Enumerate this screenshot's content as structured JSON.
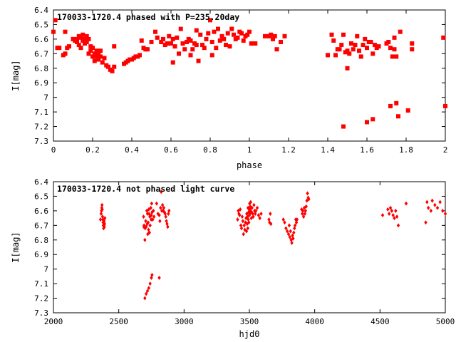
{
  "chart_data": [
    {
      "type": "scatter",
      "title": "170033-1720.4 phased with P=235.20day",
      "xlabel": "phase",
      "ylabel": "I[mag]",
      "xlim": [
        0,
        2
      ],
      "ylim": [
        7.3,
        6.4
      ],
      "y_inverted": true,
      "grid": false,
      "color": "#ff0000",
      "marker": "filled-square",
      "xticks": [
        0,
        0.2,
        0.4,
        0.6,
        0.8,
        1,
        1.2,
        1.4,
        1.6,
        1.8,
        2
      ],
      "xticklabels": [
        "0",
        "0.2",
        "0.4",
        "0.6",
        "0.8",
        "1",
        "1.2",
        "1.4",
        "1.6",
        "1.8",
        "2"
      ],
      "yticks": [
        6.4,
        6.5,
        6.6,
        6.7,
        6.8,
        6.9,
        7.0,
        7.1,
        7.2,
        7.3
      ],
      "yticklabels": [
        "6.4",
        "6.5",
        "6.6",
        "6.7",
        "6.8",
        "6.9",
        "7",
        "7.1",
        "7.2",
        "7.3"
      ],
      "points": [
        [
          0.0,
          6.55
        ],
        [
          0.01,
          6.47
        ],
        [
          0.02,
          6.66
        ],
        [
          0.03,
          6.66
        ],
        [
          0.05,
          6.71
        ],
        [
          0.06,
          6.7
        ],
        [
          0.06,
          6.55
        ],
        [
          0.07,
          6.66
        ],
        [
          0.08,
          6.65
        ],
        [
          0.1,
          6.6
        ],
        [
          0.11,
          6.61
        ],
        [
          0.12,
          6.6
        ],
        [
          0.12,
          6.62
        ],
        [
          0.13,
          6.58
        ],
        [
          0.13,
          6.64
        ],
        [
          0.14,
          6.59
        ],
        [
          0.14,
          6.66
        ],
        [
          0.15,
          6.61
        ],
        [
          0.15,
          6.57
        ],
        [
          0.16,
          6.6
        ],
        [
          0.16,
          6.63
        ],
        [
          0.17,
          6.62
        ],
        [
          0.17,
          6.58
        ],
        [
          0.18,
          6.6
        ],
        [
          0.18,
          6.7
        ],
        [
          0.19,
          6.65
        ],
        [
          0.19,
          6.68
        ],
        [
          0.2,
          6.66
        ],
        [
          0.2,
          6.72
        ],
        [
          0.21,
          6.7
        ],
        [
          0.21,
          6.75
        ],
        [
          0.22,
          6.68
        ],
        [
          0.22,
          6.72
        ],
        [
          0.23,
          6.7
        ],
        [
          0.23,
          6.74
        ],
        [
          0.24,
          6.68
        ],
        [
          0.24,
          6.72
        ],
        [
          0.25,
          6.76
        ],
        [
          0.26,
          6.73
        ],
        [
          0.27,
          6.78
        ],
        [
          0.28,
          6.79
        ],
        [
          0.29,
          6.81
        ],
        [
          0.3,
          6.82
        ],
        [
          0.31,
          6.79
        ],
        [
          0.31,
          6.65
        ],
        [
          0.36,
          6.77
        ],
        [
          0.37,
          6.76
        ],
        [
          0.38,
          6.75
        ],
        [
          0.39,
          6.74
        ],
        [
          0.4,
          6.74
        ],
        [
          0.41,
          6.73
        ],
        [
          0.42,
          6.72
        ],
        [
          0.43,
          6.72
        ],
        [
          0.44,
          6.71
        ],
        [
          0.45,
          6.61
        ],
        [
          0.46,
          6.66
        ],
        [
          0.47,
          6.67
        ],
        [
          0.48,
          6.67
        ],
        [
          0.5,
          6.62
        ],
        [
          0.52,
          6.55
        ],
        [
          0.53,
          6.59
        ],
        [
          0.55,
          6.62
        ],
        [
          0.56,
          6.6
        ],
        [
          0.57,
          6.64
        ],
        [
          0.58,
          6.63
        ],
        [
          0.59,
          6.58
        ],
        [
          0.6,
          6.63
        ],
        [
          0.61,
          6.6
        ],
        [
          0.61,
          6.76
        ],
        [
          0.62,
          6.65
        ],
        [
          0.63,
          6.59
        ],
        [
          0.64,
          6.7
        ],
        [
          0.65,
          6.53
        ],
        [
          0.66,
          6.63
        ],
        [
          0.67,
          6.67
        ],
        [
          0.68,
          6.62
        ],
        [
          0.69,
          6.6
        ],
        [
          0.7,
          6.61
        ],
        [
          0.7,
          6.71
        ],
        [
          0.71,
          6.67
        ],
        [
          0.72,
          6.63
        ],
        [
          0.73,
          6.64
        ],
        [
          0.73,
          6.54
        ],
        [
          0.74,
          6.75
        ],
        [
          0.75,
          6.57
        ],
        [
          0.76,
          6.64
        ],
        [
          0.77,
          6.66
        ],
        [
          0.78,
          6.6
        ],
        [
          0.79,
          6.56
        ],
        [
          0.8,
          6.47
        ],
        [
          0.81,
          6.62
        ],
        [
          0.81,
          6.71
        ],
        [
          0.82,
          6.55
        ],
        [
          0.83,
          6.66
        ],
        [
          0.84,
          6.53
        ],
        [
          0.85,
          6.61
        ],
        [
          0.86,
          6.58
        ],
        [
          0.87,
          6.6
        ],
        [
          0.88,
          6.64
        ],
        [
          0.89,
          6.56
        ],
        [
          0.9,
          6.65
        ],
        [
          0.91,
          6.53
        ],
        [
          0.92,
          6.57
        ],
        [
          0.93,
          6.6
        ],
        [
          0.94,
          6.59
        ],
        [
          0.95,
          6.55
        ],
        [
          0.96,
          6.56
        ],
        [
          0.97,
          6.61
        ],
        [
          0.98,
          6.58
        ],
        [
          0.99,
          6.57
        ],
        [
          1.0,
          6.55
        ],
        [
          1.01,
          6.63
        ],
        [
          1.02,
          6.63
        ],
        [
          1.03,
          6.63
        ],
        [
          1.08,
          6.58
        ],
        [
          1.1,
          6.58
        ],
        [
          1.11,
          6.57
        ],
        [
          1.12,
          6.6
        ],
        [
          1.13,
          6.58
        ],
        [
          1.14,
          6.67
        ],
        [
          1.16,
          6.62
        ],
        [
          1.18,
          6.58
        ],
        [
          1.4,
          6.71
        ],
        [
          1.42,
          6.57
        ],
        [
          1.43,
          6.61
        ],
        [
          1.44,
          6.71
        ],
        [
          1.45,
          6.67
        ],
        [
          1.46,
          6.67
        ],
        [
          1.47,
          6.64
        ],
        [
          1.48,
          6.57
        ],
        [
          1.48,
          7.2
        ],
        [
          1.49,
          6.69
        ],
        [
          1.5,
          6.68
        ],
        [
          1.5,
          6.8
        ],
        [
          1.51,
          6.7
        ],
        [
          1.52,
          6.63
        ],
        [
          1.53,
          6.67
        ],
        [
          1.54,
          6.64
        ],
        [
          1.55,
          6.58
        ],
        [
          1.56,
          6.68
        ],
        [
          1.57,
          6.72
        ],
        [
          1.58,
          6.64
        ],
        [
          1.59,
          6.6
        ],
        [
          1.6,
          6.66
        ],
        [
          1.6,
          7.17
        ],
        [
          1.61,
          6.62
        ],
        [
          1.62,
          6.62
        ],
        [
          1.63,
          6.7
        ],
        [
          1.63,
          7.15
        ],
        [
          1.64,
          6.64
        ],
        [
          1.65,
          6.66
        ],
        [
          1.66,
          6.65
        ],
        [
          1.7,
          6.63
        ],
        [
          1.71,
          6.62
        ],
        [
          1.72,
          6.66
        ],
        [
          1.72,
          7.06
        ],
        [
          1.73,
          6.72
        ],
        [
          1.74,
          6.67
        ],
        [
          1.74,
          6.59
        ],
        [
          1.75,
          6.72
        ],
        [
          1.75,
          7.04
        ],
        [
          1.76,
          7.13
        ],
        [
          1.77,
          6.55
        ],
        [
          1.81,
          7.09
        ],
        [
          1.83,
          6.63
        ],
        [
          1.83,
          6.67
        ],
        [
          1.99,
          6.59
        ],
        [
          2.0,
          7.06
        ]
      ]
    },
    {
      "type": "scatter",
      "title": "170033-1720.4 not phased light curve",
      "xlabel": "hjd0",
      "ylabel": "I[mag]",
      "xlim": [
        2000,
        5000
      ],
      "ylim": [
        7.3,
        6.4
      ],
      "y_inverted": true,
      "grid": false,
      "color": "#ff0000",
      "marker": "filled-diamond",
      "xticks": [
        2000,
        2500,
        3000,
        3500,
        4000,
        4500,
        5000
      ],
      "xticklabels": [
        "2000",
        "2500",
        "3000",
        "3500",
        "4000",
        "4500",
        "5000"
      ],
      "yticks": [
        6.4,
        6.5,
        6.6,
        6.7,
        6.8,
        6.9,
        7.0,
        7.1,
        7.2,
        7.3
      ],
      "yticklabels": [
        "6.4",
        "6.5",
        "6.6",
        "6.7",
        "6.8",
        "6.9",
        "7",
        "7.1",
        "7.2",
        "7.3"
      ],
      "points": [
        [
          2360,
          6.66
        ],
        [
          2365,
          6.62
        ],
        [
          2368,
          6.6
        ],
        [
          2370,
          6.58
        ],
        [
          2372,
          6.56
        ],
        [
          2374,
          6.59
        ],
        [
          2376,
          6.64
        ],
        [
          2378,
          6.66
        ],
        [
          2380,
          6.68
        ],
        [
          2382,
          6.7
        ],
        [
          2384,
          6.72
        ],
        [
          2386,
          6.7
        ],
        [
          2388,
          6.67
        ],
        [
          2390,
          6.71
        ],
        [
          2392,
          6.69
        ],
        [
          2394,
          6.65
        ],
        [
          2690,
          6.64
        ],
        [
          2692,
          6.71
        ],
        [
          2694,
          6.7
        ],
        [
          2700,
          6.8
        ],
        [
          2702,
          6.72
        ],
        [
          2706,
          6.67
        ],
        [
          2710,
          6.71
        ],
        [
          2715,
          6.6
        ],
        [
          2718,
          6.69
        ],
        [
          2720,
          6.62
        ],
        [
          2722,
          6.76
        ],
        [
          2725,
          6.68
        ],
        [
          2728,
          6.73
        ],
        [
          2730,
          6.59
        ],
        [
          2732,
          6.62
        ],
        [
          2735,
          6.75
        ],
        [
          2738,
          6.64
        ],
        [
          2740,
          6.7
        ],
        [
          2745,
          6.58
        ],
        [
          2748,
          6.66
        ],
        [
          2750,
          6.63
        ],
        [
          2752,
          6.55
        ],
        [
          2755,
          6.61
        ],
        [
          2760,
          6.66
        ],
        [
          2765,
          6.6
        ],
        [
          2770,
          6.64
        ],
        [
          2790,
          6.55
        ],
        [
          2800,
          6.62
        ],
        [
          2810,
          6.63
        ],
        [
          2815,
          6.67
        ],
        [
          2820,
          6.58
        ],
        [
          2825,
          6.47
        ],
        [
          2830,
          6.6
        ],
        [
          2835,
          6.56
        ],
        [
          2840,
          6.6
        ],
        [
          2845,
          6.58
        ],
        [
          2850,
          6.61
        ],
        [
          2855,
          6.62
        ],
        [
          2860,
          6.64
        ],
        [
          2865,
          6.67
        ],
        [
          2870,
          6.69
        ],
        [
          2875,
          6.71
        ],
        [
          2880,
          6.62
        ],
        [
          2885,
          6.6
        ],
        [
          2700,
          7.2
        ],
        [
          2710,
          7.17
        ],
        [
          2720,
          7.15
        ],
        [
          2730,
          7.13
        ],
        [
          2740,
          7.1
        ],
        [
          2750,
          7.06
        ],
        [
          2755,
          7.04
        ],
        [
          2810,
          7.06
        ],
        [
          3410,
          6.66
        ],
        [
          3415,
          6.6
        ],
        [
          3420,
          6.62
        ],
        [
          3425,
          6.63
        ],
        [
          3430,
          6.59
        ],
        [
          3435,
          6.7
        ],
        [
          3440,
          6.72
        ],
        [
          3445,
          6.64
        ],
        [
          3450,
          6.67
        ],
        [
          3455,
          6.76
        ],
        [
          3460,
          6.7
        ],
        [
          3465,
          6.73
        ],
        [
          3470,
          6.68
        ],
        [
          3475,
          6.65
        ],
        [
          3478,
          6.74
        ],
        [
          3480,
          6.62
        ],
        [
          3483,
          6.69
        ],
        [
          3486,
          6.64
        ],
        [
          3488,
          6.72
        ],
        [
          3490,
          6.58
        ],
        [
          3492,
          6.66
        ],
        [
          3494,
          6.61
        ],
        [
          3496,
          6.68
        ],
        [
          3498,
          6.59
        ],
        [
          3500,
          6.63
        ],
        [
          3502,
          6.55
        ],
        [
          3504,
          6.62
        ],
        [
          3506,
          6.57
        ],
        [
          3508,
          6.6
        ],
        [
          3510,
          6.54
        ],
        [
          3512,
          6.58
        ],
        [
          3515,
          6.65
        ],
        [
          3518,
          6.61
        ],
        [
          3520,
          6.58
        ],
        [
          3525,
          6.62
        ],
        [
          3530,
          6.64
        ],
        [
          3535,
          6.56
        ],
        [
          3540,
          6.6
        ],
        [
          3545,
          6.62
        ],
        [
          3550,
          6.6
        ],
        [
          3560,
          6.58
        ],
        [
          3570,
          6.63
        ],
        [
          3580,
          6.65
        ],
        [
          3590,
          6.62
        ],
        [
          3650,
          6.66
        ],
        [
          3655,
          6.68
        ],
        [
          3660,
          6.62
        ],
        [
          3665,
          6.69
        ],
        [
          3760,
          6.66
        ],
        [
          3770,
          6.68
        ],
        [
          3780,
          6.72
        ],
        [
          3790,
          6.74
        ],
        [
          3800,
          6.76
        ],
        [
          3805,
          6.7
        ],
        [
          3810,
          6.78
        ],
        [
          3815,
          6.74
        ],
        [
          3820,
          6.8
        ],
        [
          3825,
          6.82
        ],
        [
          3830,
          6.77
        ],
        [
          3835,
          6.79
        ],
        [
          3840,
          6.75
        ],
        [
          3845,
          6.72
        ],
        [
          3850,
          6.7
        ],
        [
          3855,
          6.66
        ],
        [
          3860,
          6.68
        ],
        [
          3865,
          6.66
        ],
        [
          3900,
          6.59
        ],
        [
          3905,
          6.62
        ],
        [
          3910,
          6.6
        ],
        [
          3915,
          6.64
        ],
        [
          3920,
          6.58
        ],
        [
          3925,
          6.62
        ],
        [
          3930,
          6.6
        ],
        [
          3935,
          6.57
        ],
        [
          3940,
          6.53
        ],
        [
          3945,
          6.48
        ],
        [
          3950,
          6.51
        ],
        [
          3955,
          6.52
        ],
        [
          4520,
          6.63
        ],
        [
          4560,
          6.59
        ],
        [
          4570,
          6.62
        ],
        [
          4580,
          6.58
        ],
        [
          4590,
          6.6
        ],
        [
          4600,
          6.63
        ],
        [
          4610,
          6.65
        ],
        [
          4620,
          6.6
        ],
        [
          4630,
          6.64
        ],
        [
          4640,
          6.7
        ],
        [
          4700,
          6.55
        ],
        [
          4850,
          6.68
        ],
        [
          4860,
          6.54
        ],
        [
          4870,
          6.58
        ],
        [
          4890,
          6.6
        ],
        [
          4900,
          6.53
        ],
        [
          4920,
          6.56
        ],
        [
          4940,
          6.58
        ],
        [
          4960,
          6.54
        ],
        [
          4980,
          6.6
        ],
        [
          5000,
          6.62
        ]
      ]
    }
  ]
}
